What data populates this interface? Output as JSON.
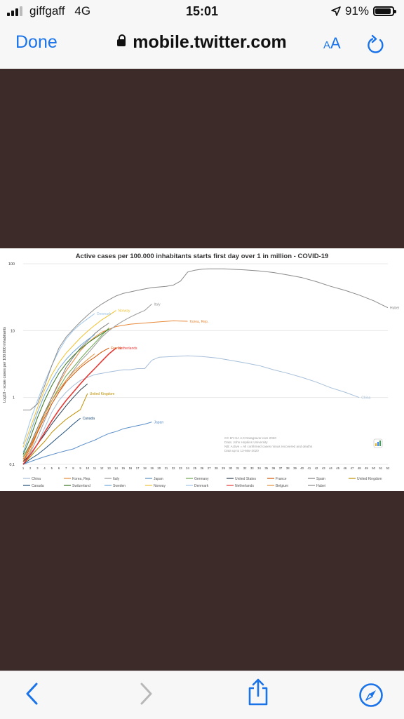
{
  "status": {
    "carrier": "giffgaff",
    "network": "4G",
    "time": "15:01",
    "battery": "91%",
    "battery_level": 0.91
  },
  "nav": {
    "done_label": "Done",
    "url": "mobile.twitter.com",
    "aa_small": "A",
    "aa_big": "A"
  },
  "chart_data": {
    "type": "line",
    "title": "Active cases per 100.000 inhabitants starts first day over 1 in million - COVID-19",
    "ylabel": "Log10 - scale cases per 100.000 inhabitants",
    "y_scale": "log",
    "ylim": [
      0.1,
      100
    ],
    "y_ticks": [
      "100",
      "10",
      "1",
      "0,1"
    ],
    "xlim": [
      1,
      52
    ],
    "x_ticks": [
      "1",
      "2",
      "3",
      "4",
      "5",
      "6",
      "7",
      "8",
      "9",
      "10",
      "11",
      "12",
      "13",
      "14",
      "15",
      "16",
      "17",
      "18",
      "19",
      "20",
      "21",
      "22",
      "23",
      "24",
      "25",
      "26",
      "27",
      "28",
      "29",
      "30",
      "31",
      "32",
      "33",
      "34",
      "35",
      "36",
      "37",
      "38",
      "39",
      "40",
      "41",
      "42",
      "43",
      "44",
      "45",
      "46",
      "47",
      "48",
      "49",
      "50",
      "51",
      "52"
    ],
    "grid": true,
    "legend_position": "bottom",
    "annotations": [
      "CC BY-SA 4.0 Datagraver.com 2020",
      "Data: John Hopkins University",
      "NB: Active = All confirmed cases minus recovered and deaths",
      "Data up to 13-Mar-2020"
    ],
    "series": [
      {
        "name": "China",
        "color": "#a7bfd9",
        "end_label": "China",
        "points": [
          [
            1,
            0.12
          ],
          [
            2,
            0.13
          ],
          [
            3,
            0.2
          ],
          [
            4,
            0.35
          ],
          [
            5,
            0.6
          ],
          [
            6,
            0.9
          ],
          [
            7,
            1.2
          ],
          [
            8,
            1.5
          ],
          [
            9,
            1.8
          ],
          [
            10,
            2.0
          ],
          [
            11,
            2.2
          ],
          [
            12,
            2.3
          ],
          [
            13,
            2.4
          ],
          [
            14,
            2.5
          ],
          [
            15,
            2.6
          ],
          [
            16,
            2.6
          ],
          [
            17,
            2.7
          ],
          [
            18,
            2.7
          ],
          [
            19,
            3.6
          ],
          [
            20,
            4.0
          ],
          [
            22,
            4.1
          ],
          [
            24,
            4.2
          ],
          [
            26,
            4.1
          ],
          [
            28,
            3.9
          ],
          [
            30,
            3.6
          ],
          [
            32,
            3.3
          ],
          [
            34,
            3.0
          ],
          [
            36,
            2.6
          ],
          [
            38,
            2.3
          ],
          [
            40,
            2.0
          ],
          [
            42,
            1.7
          ],
          [
            44,
            1.4
          ],
          [
            46,
            1.2
          ],
          [
            48,
            1.0
          ]
        ]
      },
      {
        "name": "Korea, Rep.",
        "color": "#e8893a",
        "end_label": "Korea, Rep.",
        "points": [
          [
            1,
            0.11
          ],
          [
            2,
            0.16
          ],
          [
            3,
            0.3
          ],
          [
            4,
            0.6
          ],
          [
            5,
            1.0
          ],
          [
            6,
            1.6
          ],
          [
            7,
            2.5
          ],
          [
            8,
            3.5
          ],
          [
            9,
            5.0
          ],
          [
            10,
            6.5
          ],
          [
            11,
            8.0
          ],
          [
            12,
            9.5
          ],
          [
            13,
            10.5
          ],
          [
            14,
            11.5
          ],
          [
            16,
            12.5
          ],
          [
            18,
            13.0
          ],
          [
            20,
            13.5
          ],
          [
            22,
            14.0
          ],
          [
            24,
            13.8
          ]
        ]
      },
      {
        "name": "Italy",
        "color": "#9a9a9a",
        "end_label": "Italy",
        "points": [
          [
            1,
            0.1
          ],
          [
            2,
            0.15
          ],
          [
            3,
            0.25
          ],
          [
            4,
            0.45
          ],
          [
            5,
            0.8
          ],
          [
            6,
            1.2
          ],
          [
            7,
            1.8
          ],
          [
            8,
            2.5
          ],
          [
            9,
            3.5
          ],
          [
            10,
            4.5
          ],
          [
            11,
            6.0
          ],
          [
            12,
            8.0
          ],
          [
            13,
            10.0
          ],
          [
            14,
            12.0
          ],
          [
            15,
            14.0
          ],
          [
            16,
            16.0
          ],
          [
            17,
            18.0
          ],
          [
            18,
            20.0
          ],
          [
            19,
            25.0
          ]
        ]
      },
      {
        "name": "Japan",
        "color": "#5b8fc9",
        "end_label": "Japan",
        "points": [
          [
            1,
            0.1
          ],
          [
            2,
            0.11
          ],
          [
            3,
            0.12
          ],
          [
            4,
            0.13
          ],
          [
            5,
            0.14
          ],
          [
            6,
            0.15
          ],
          [
            7,
            0.16
          ],
          [
            8,
            0.17
          ],
          [
            9,
            0.19
          ],
          [
            10,
            0.21
          ],
          [
            11,
            0.23
          ],
          [
            12,
            0.26
          ],
          [
            13,
            0.29
          ],
          [
            14,
            0.31
          ],
          [
            15,
            0.34
          ],
          [
            16,
            0.36
          ],
          [
            17,
            0.38
          ],
          [
            18,
            0.4
          ],
          [
            19,
            0.43
          ]
        ]
      },
      {
        "name": "Germany",
        "color": "#6aa84f",
        "end_label": "",
        "points": [
          [
            1,
            0.13
          ],
          [
            2,
            0.2
          ],
          [
            3,
            0.35
          ],
          [
            4,
            0.6
          ],
          [
            5,
            0.9
          ],
          [
            6,
            1.4
          ],
          [
            7,
            2.1
          ],
          [
            8,
            2.8
          ],
          [
            9,
            3.8
          ],
          [
            10,
            5.0
          ],
          [
            11,
            6.5
          ],
          [
            12,
            8.5
          ],
          [
            13,
            11.0
          ]
        ]
      },
      {
        "name": "United States",
        "color": "#2c3e50",
        "end_label": "",
        "points": [
          [
            1,
            0.11
          ],
          [
            2,
            0.14
          ],
          [
            3,
            0.2
          ],
          [
            4,
            0.28
          ],
          [
            5,
            0.4
          ],
          [
            6,
            0.55
          ],
          [
            7,
            0.75
          ],
          [
            8,
            1.0
          ],
          [
            9,
            1.3
          ],
          [
            10,
            1.6
          ]
        ]
      },
      {
        "name": "France",
        "color": "#d35400",
        "end_label": "France",
        "points": [
          [
            1,
            0.11
          ],
          [
            2,
            0.18
          ],
          [
            3,
            0.3
          ],
          [
            4,
            0.5
          ],
          [
            5,
            0.8
          ],
          [
            6,
            1.2
          ],
          [
            7,
            1.7
          ],
          [
            8,
            2.2
          ],
          [
            9,
            2.8
          ],
          [
            10,
            3.4
          ],
          [
            11,
            4.0
          ],
          [
            12,
            4.8
          ],
          [
            13,
            5.5
          ]
        ]
      },
      {
        "name": "Spain",
        "color": "#7f7f7f",
        "end_label": "",
        "points": [
          [
            1,
            0.12
          ],
          [
            2,
            0.2
          ],
          [
            3,
            0.35
          ],
          [
            4,
            0.6
          ],
          [
            5,
            1.0
          ],
          [
            6,
            1.7
          ],
          [
            7,
            2.8
          ],
          [
            8,
            4.0
          ],
          [
            9,
            5.5
          ],
          [
            10,
            7.0
          ],
          [
            11,
            9.0
          ],
          [
            12,
            11.0
          ],
          [
            13,
            13.0
          ]
        ]
      },
      {
        "name": "United Kingdom",
        "color": "#bf9000",
        "end_label": "United Kingdom",
        "points": [
          [
            1,
            0.1
          ],
          [
            2,
            0.13
          ],
          [
            3,
            0.17
          ],
          [
            4,
            0.22
          ],
          [
            5,
            0.3
          ],
          [
            6,
            0.38
          ],
          [
            7,
            0.47
          ],
          [
            8,
            0.56
          ],
          [
            9,
            0.66
          ],
          [
            10,
            1.15
          ]
        ]
      },
      {
        "name": "Canada",
        "color": "#1f4e79",
        "end_label": "Canada",
        "points": [
          [
            1,
            0.1
          ],
          [
            2,
            0.12
          ],
          [
            3,
            0.14
          ],
          [
            4,
            0.17
          ],
          [
            5,
            0.21
          ],
          [
            6,
            0.26
          ],
          [
            7,
            0.32
          ],
          [
            8,
            0.4
          ],
          [
            9,
            0.49
          ]
        ]
      },
      {
        "name": "Switzerland",
        "color": "#38761d",
        "end_label": "",
        "points": [
          [
            1,
            0.14
          ],
          [
            2,
            0.25
          ],
          [
            3,
            0.5
          ],
          [
            4,
            0.9
          ],
          [
            5,
            1.5
          ],
          [
            6,
            2.3
          ],
          [
            7,
            3.2
          ],
          [
            8,
            4.2
          ],
          [
            9,
            5.3
          ],
          [
            10,
            6.5
          ],
          [
            11,
            7.7
          ],
          [
            12,
            9.0
          ],
          [
            13,
            10.5
          ]
        ]
      },
      {
        "name": "Sweden",
        "color": "#6fa8dc",
        "end_label": "",
        "points": [
          [
            1,
            0.15
          ],
          [
            2,
            0.3
          ],
          [
            3,
            0.6
          ],
          [
            4,
            1.1
          ],
          [
            5,
            1.8
          ],
          [
            6,
            2.7
          ],
          [
            7,
            3.7
          ],
          [
            8,
            4.8
          ],
          [
            9,
            6.0
          ],
          [
            10,
            7.3
          ],
          [
            11,
            8.7
          ]
        ]
      },
      {
        "name": "Norway",
        "color": "#f1c232",
        "end_label": "Norway",
        "points": [
          [
            1,
            0.18
          ],
          [
            2,
            0.35
          ],
          [
            3,
            0.7
          ],
          [
            4,
            1.3
          ],
          [
            5,
            2.2
          ],
          [
            6,
            3.3
          ],
          [
            7,
            4.6
          ],
          [
            8,
            6.0
          ],
          [
            9,
            7.8
          ],
          [
            10,
            9.8
          ],
          [
            11,
            12.0
          ],
          [
            12,
            14.5
          ],
          [
            13,
            17.0
          ],
          [
            14,
            20.0
          ]
        ]
      },
      {
        "name": "Denmark",
        "color": "#9fc5e8",
        "end_label": "Denmark",
        "points": [
          [
            1,
            0.2
          ],
          [
            2,
            0.45
          ],
          [
            3,
            0.9
          ],
          [
            4,
            1.7
          ],
          [
            5,
            3.0
          ],
          [
            6,
            5.0
          ],
          [
            7,
            7.5
          ],
          [
            8,
            10.0
          ],
          [
            9,
            12.5
          ],
          [
            10,
            15.0
          ],
          [
            11,
            18.0
          ]
        ]
      },
      {
        "name": "Netherlands",
        "color": "#e53935",
        "end_label": "Netherlands",
        "points": [
          [
            1,
            0.1
          ],
          [
            2,
            0.14
          ],
          [
            3,
            0.2
          ],
          [
            4,
            0.3
          ],
          [
            5,
            0.45
          ],
          [
            6,
            0.65
          ],
          [
            7,
            0.9
          ],
          [
            8,
            1.2
          ],
          [
            9,
            1.6
          ],
          [
            10,
            2.1
          ],
          [
            11,
            2.7
          ],
          [
            12,
            3.5
          ],
          [
            13,
            4.5
          ],
          [
            14,
            5.5
          ]
        ]
      },
      {
        "name": "Belgium",
        "color": "#e69138",
        "end_label": "",
        "points": [
          [
            1,
            0.12
          ],
          [
            2,
            0.19
          ],
          [
            3,
            0.32
          ],
          [
            4,
            0.55
          ],
          [
            5,
            0.9
          ],
          [
            6,
            1.3
          ],
          [
            7,
            1.8
          ],
          [
            8,
            2.4
          ],
          [
            9,
            3.0
          ],
          [
            10,
            3.7
          ],
          [
            11,
            4.5
          ]
        ]
      },
      {
        "name": "Hubei",
        "color": "#8a8a8a",
        "end_label": "Hubei",
        "points": [
          [
            1,
            0.65
          ],
          [
            2,
            0.65
          ],
          [
            3,
            0.8
          ],
          [
            4,
            1.5
          ],
          [
            5,
            3.0
          ],
          [
            6,
            5.5
          ],
          [
            7,
            8.0
          ],
          [
            8,
            10.5
          ],
          [
            9,
            13.5
          ],
          [
            10,
            17.0
          ],
          [
            11,
            21.0
          ],
          [
            12,
            25.0
          ],
          [
            13,
            29.0
          ],
          [
            14,
            33.0
          ],
          [
            15,
            36.0
          ],
          [
            16,
            38.0
          ],
          [
            17,
            40.0
          ],
          [
            18,
            42.0
          ],
          [
            19,
            44.0
          ],
          [
            20,
            45.0
          ],
          [
            21,
            46.0
          ],
          [
            22,
            48.0
          ],
          [
            23,
            55.0
          ],
          [
            24,
            75.0
          ],
          [
            25,
            80.0
          ],
          [
            26,
            83.0
          ],
          [
            27,
            84.0
          ],
          [
            28,
            84.0
          ],
          [
            29,
            84.0
          ],
          [
            30,
            83.0
          ],
          [
            32,
            81.0
          ],
          [
            34,
            78.0
          ],
          [
            36,
            74.0
          ],
          [
            38,
            68.0
          ],
          [
            40,
            62.0
          ],
          [
            42,
            54.0
          ],
          [
            44,
            46.0
          ],
          [
            46,
            40.0
          ],
          [
            48,
            34.0
          ],
          [
            50,
            28.0
          ],
          [
            52,
            22.0
          ]
        ]
      }
    ]
  }
}
